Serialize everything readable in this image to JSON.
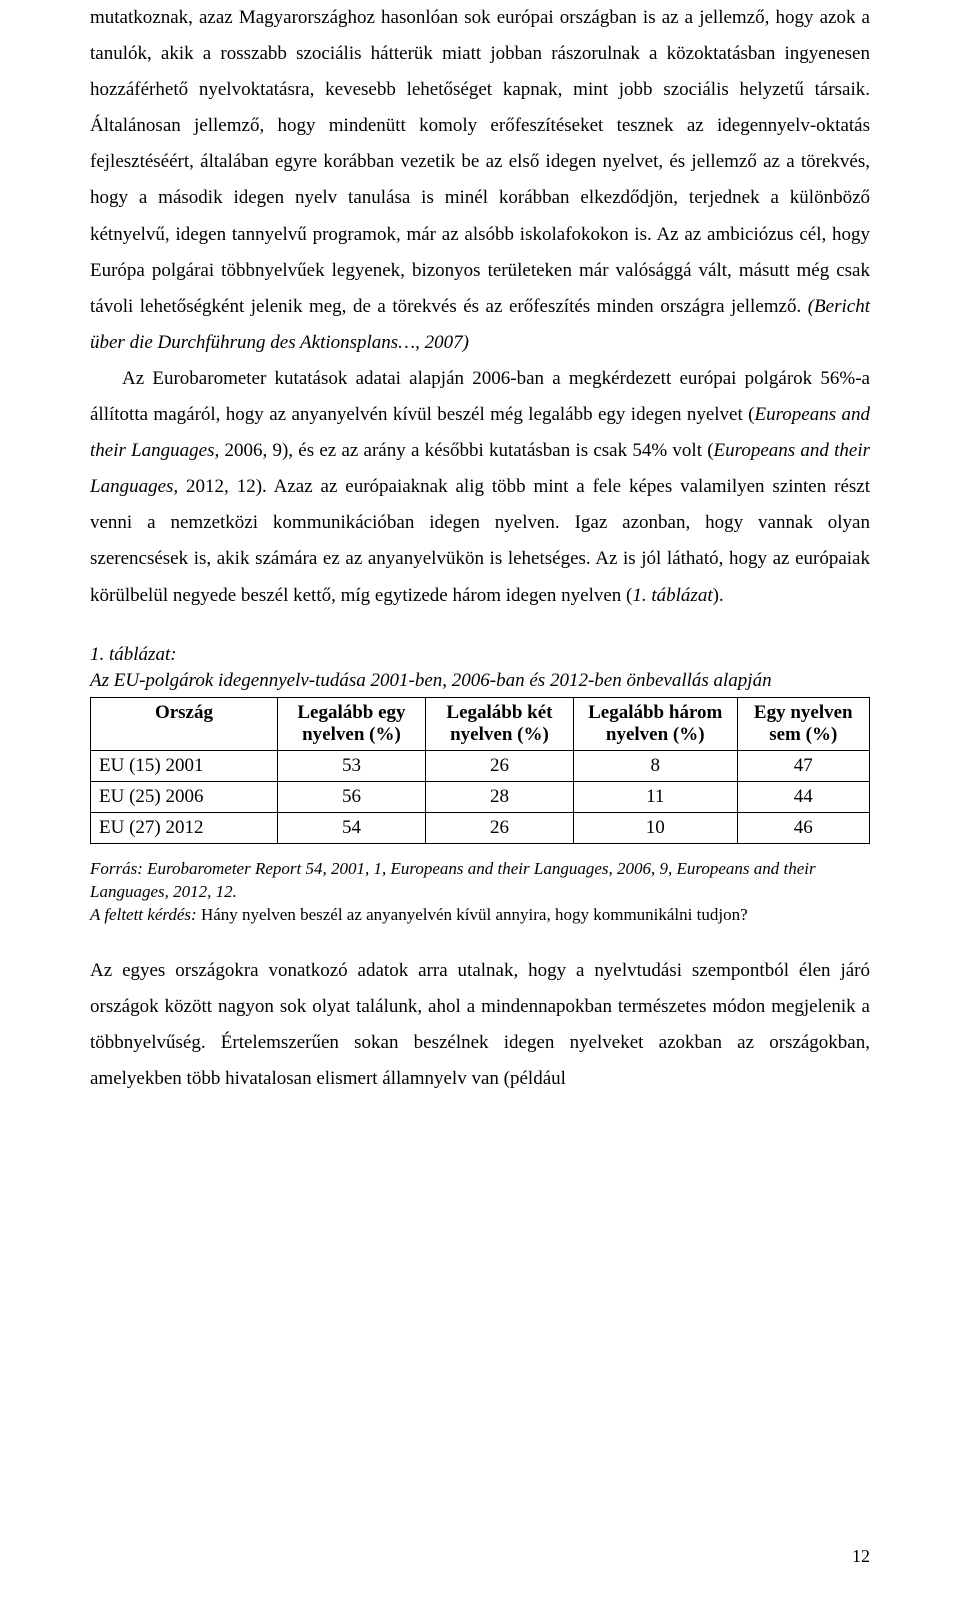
{
  "body": {
    "para1": "mutatkoznak, azaz Magyarországhoz hasonlóan sok európai országban is az a jellemző, hogy azok a tanulók, akik a rosszabb szociális hátterük miatt jobban rászorulnak a közoktatásban ingyenesen hozzáférhető nyelvoktatásra, kevesebb lehetőséget kapnak, mint jobb szociális helyzetű társaik. Általánosan jellemző, hogy mindenütt komoly erőfeszítéseket tesznek az idegennyelv-oktatás fejlesztéséért, általában egyre korábban vezetik be az első idegen nyelvet, és jellemző az a törekvés, hogy a második idegen nyelv tanulása is minél korábban elkezdődjön, terjednek a különböző kétnyelvű, idegen tannyelvű programok, már az alsóbb iskolafokokon is. Az az ambiciózus cél, hogy Európa polgárai többnyelvűek legyenek, bizonyos területeken már valósággá vált, másutt még csak távoli lehetőségként jelenik meg, de a törekvés és az erőfeszítés minden országra jellemző. ",
    "para1_ref": "(Bericht über die Durchführung des Aktionsplans…, 2007)",
    "para2_a": "Az Eurobarometer kutatások adatai alapján 2006-ban a megkérdezett európai polgárok 56%-a állította magáról, hogy az anyanyelvén kívül beszél még legalább egy idegen nyelvet (",
    "para2_ref1": "Europeans and their Languages, ",
    "para2_ref1_tail": "2006, 9), és ez az arány a későbbi kutatásban is csak 54% volt (",
    "para2_ref2": "Europeans and their Languages, ",
    "para2_ref2_tail": "2012, 12). Azaz az európaiaknak alig több mint a fele képes valamilyen szinten részt venni a nemzetközi kommunikációban idegen nyelven. Igaz azonban, hogy vannak olyan szerencsések is, akik számára ez az anyanyelvükön is lehetséges. Az is jól látható, hogy az európaiak körülbelül negyede beszél kettő, míg egytizede három idegen nyelven (",
    "para2_table_ref": "1. táblázat",
    "para2_tail": ")."
  },
  "table": {
    "caption_label": "1. táblázat:",
    "caption_text": "Az EU-polgárok idegennyelv-tudása 2001-ben, 2006-ban és 2012-ben önbevallás alapján",
    "columns": {
      "c0": "Ország",
      "c1a": "Legalább egy",
      "c1b": "nyelven (%)",
      "c2a": "Legalább két",
      "c2b": "nyelven (%)",
      "c3a": "Legalább három",
      "c3b": "nyelven (%)",
      "c4a": "Egy nyelven",
      "c4b": "sem (%)"
    },
    "rows": [
      {
        "country": "EU (15) 2001",
        "v1": "53",
        "v2": "26",
        "v3": "8",
        "v4": "47"
      },
      {
        "country": "EU (25) 2006",
        "v1": "56",
        "v2": "28",
        "v3": "11",
        "v4": "44"
      },
      {
        "country": "EU (27) 2012",
        "v1": "54",
        "v2": "26",
        "v3": "10",
        "v4": "46"
      }
    ],
    "col_widths": [
      "24%",
      "19%",
      "19%",
      "21%",
      "17%"
    ]
  },
  "footnotes": {
    "source_label": "Forrás",
    "source_text": ": Eurobarometer Report 54, 2001, 1, Europeans and their Languages, 2006, 9, Europeans and their Languages, 2012, 12.",
    "question_label": "A feltett kérdés:",
    "question_text": " Hány nyelven beszél az anyanyelvén kívül annyira, hogy kommunikálni tudjon?"
  },
  "after_table": {
    "para": "Az egyes országokra vonatkozó adatok arra utalnak, hogy a nyelvtudási szempontból élen járó országok között nagyon sok olyat találunk, ahol a mindennapokban természetes módon megjelenik a többnyelvűség. Értelemszerűen sokan beszélnek idegen nyelveket azokban az országokban, amelyekben több hivatalosan elismert államnyelv van (például"
  },
  "page_number": "12"
}
